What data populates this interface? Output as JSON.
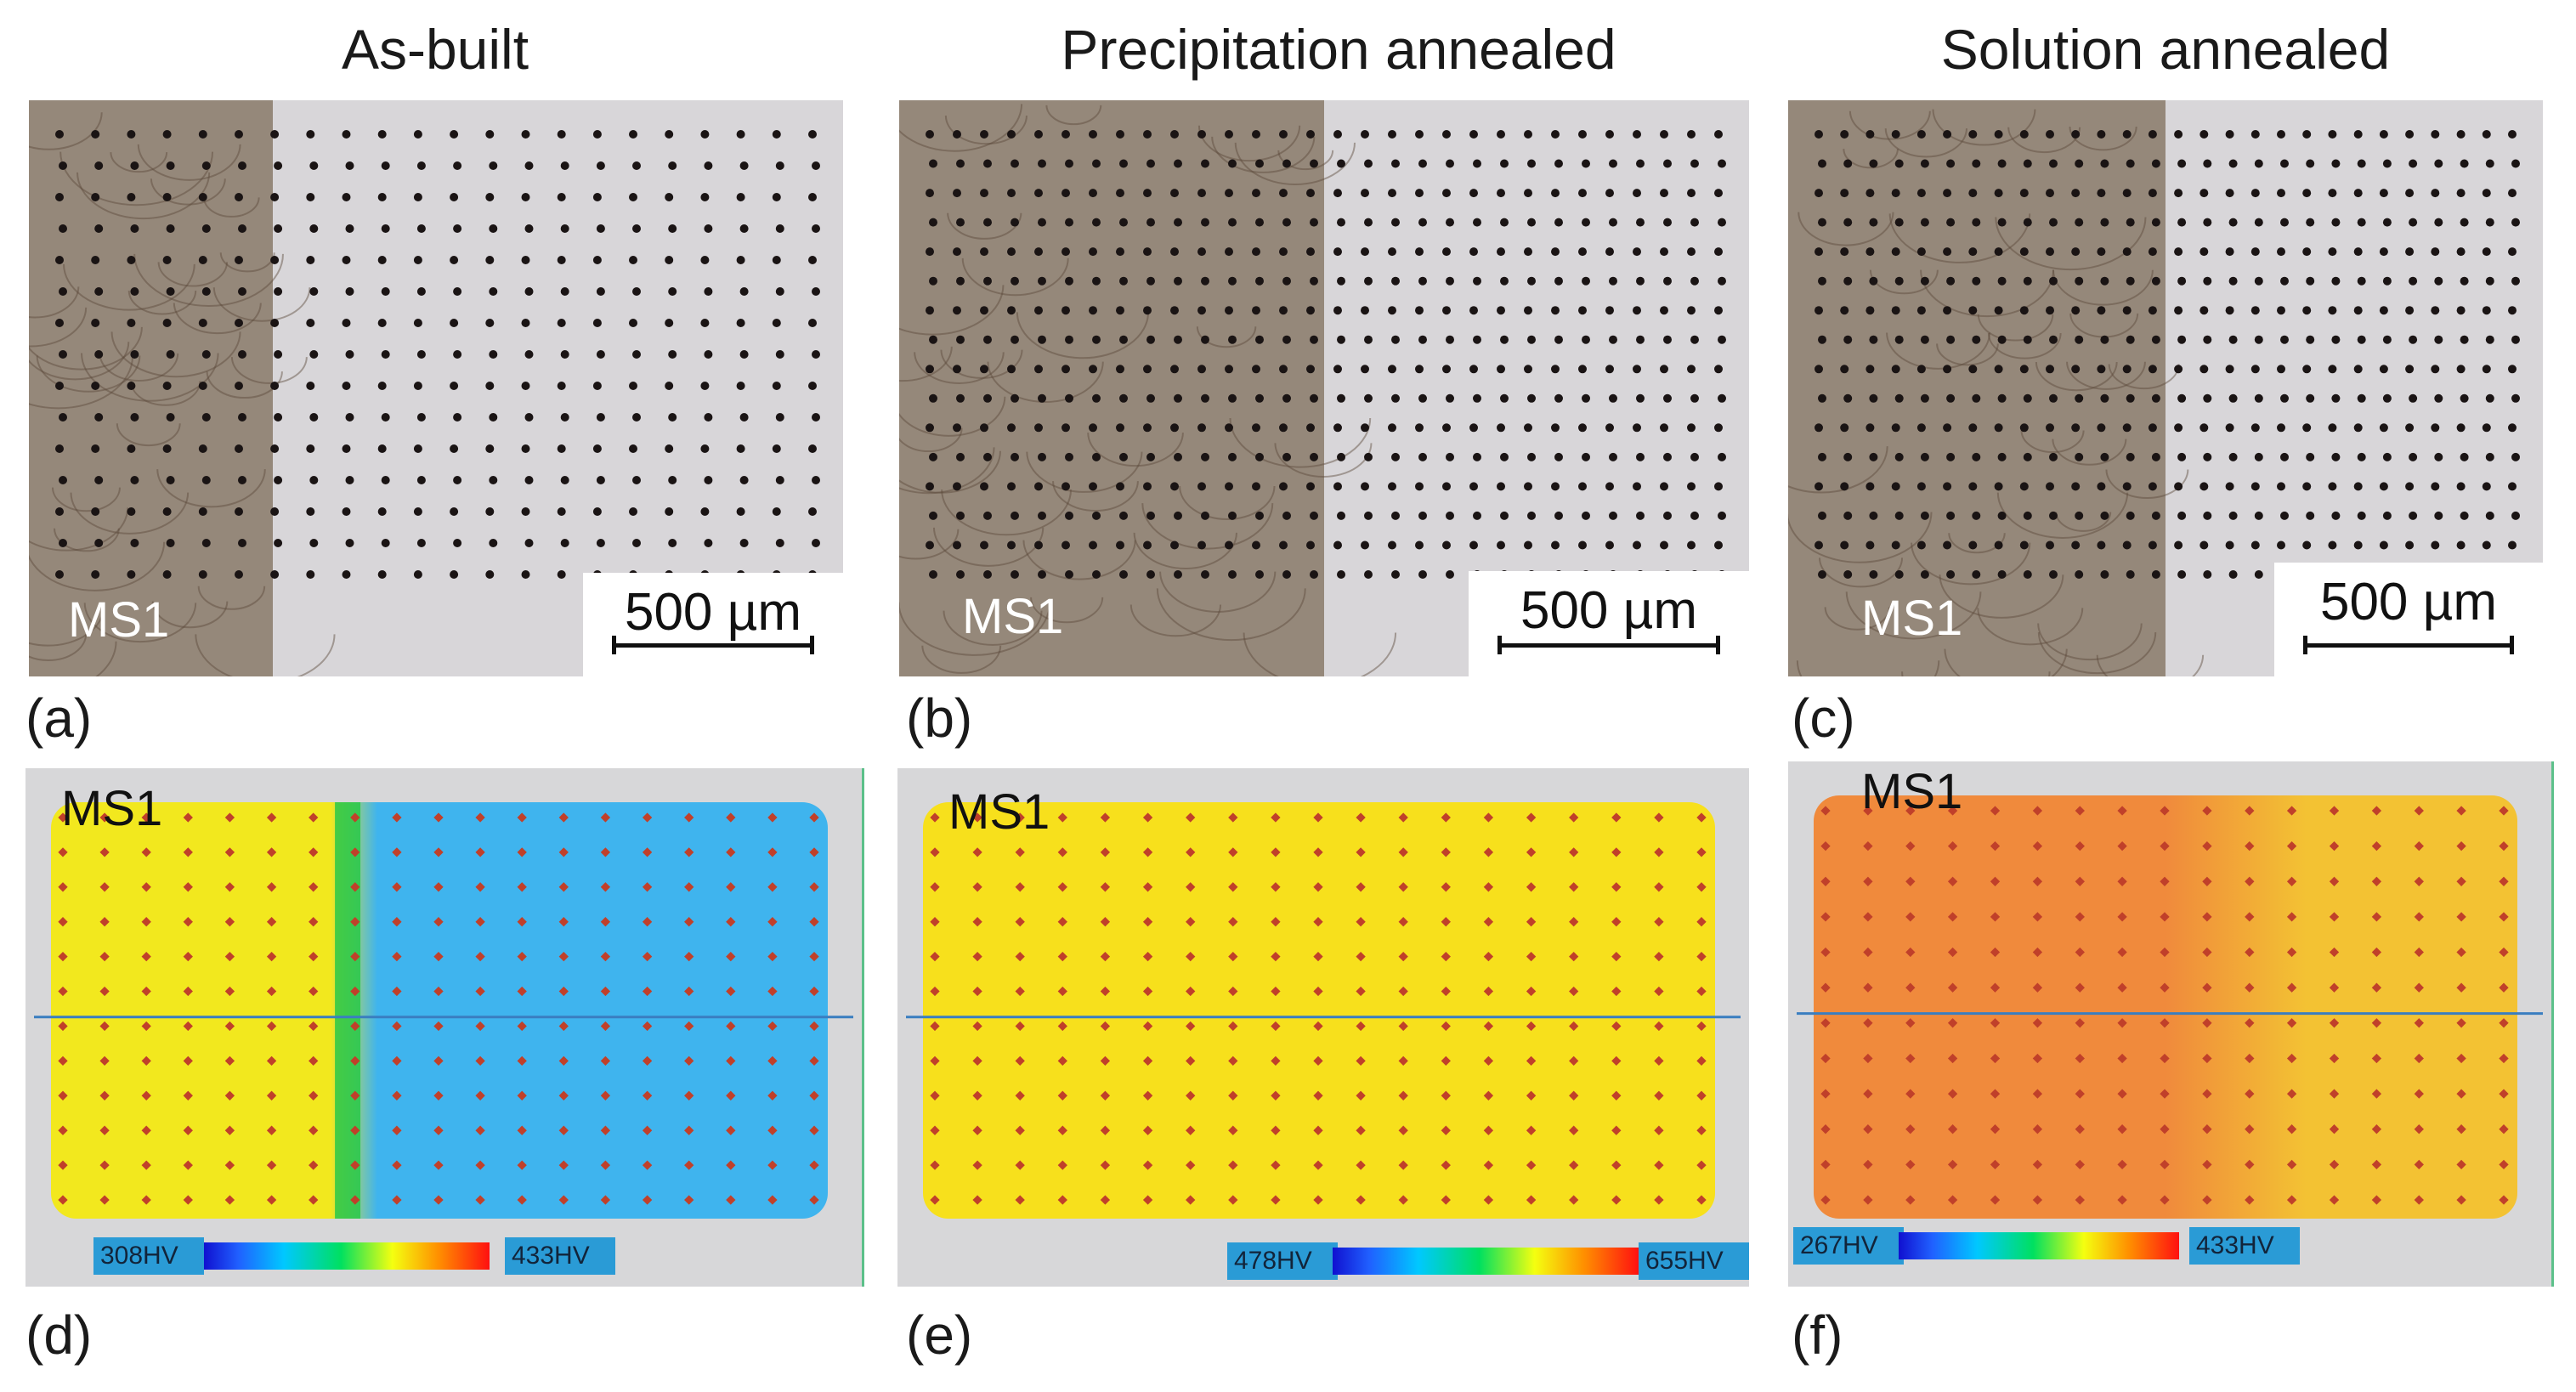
{
  "columns": [
    {
      "title": "As-built"
    },
    {
      "title": "Precipitation annealed"
    },
    {
      "title": "Solution annealed"
    }
  ],
  "micrographs": [
    {
      "label": "(a)",
      "sample": "MS1",
      "scale_bar": "500 µm",
      "interface": 0.3
    },
    {
      "label": "(b)",
      "sample": "MS1",
      "scale_bar": "500 µm",
      "interface": 0.5
    },
    {
      "label": "(c)",
      "sample": "MS1",
      "scale_bar": "500 µm",
      "interface": 0.5
    }
  ],
  "hardness_maps": [
    {
      "label": "(d)",
      "sample": "MS1",
      "legend_min": "308HV",
      "legend_max": "433HV",
      "dominant_color": "#3fb4ee",
      "left_color": "#f2e81e"
    },
    {
      "label": "(e)",
      "sample": "MS1",
      "legend_min": "478HV",
      "legend_max": "655HV",
      "dominant_color": "#f7e01c",
      "left_color": "#f7e01c"
    },
    {
      "label": "(f)",
      "sample": "MS1",
      "legend_min": "267HV",
      "legend_max": "433HV",
      "dominant_color": "#f3c233",
      "left_color": "#f08a3c"
    }
  ],
  "colors": {
    "heat_layer": "#8a7a68",
    "substrate": "#d8d6d9",
    "indent": "#1a1414",
    "scan_line": "#3a7ec0",
    "legend_label_bg": "#2a9bd6"
  }
}
